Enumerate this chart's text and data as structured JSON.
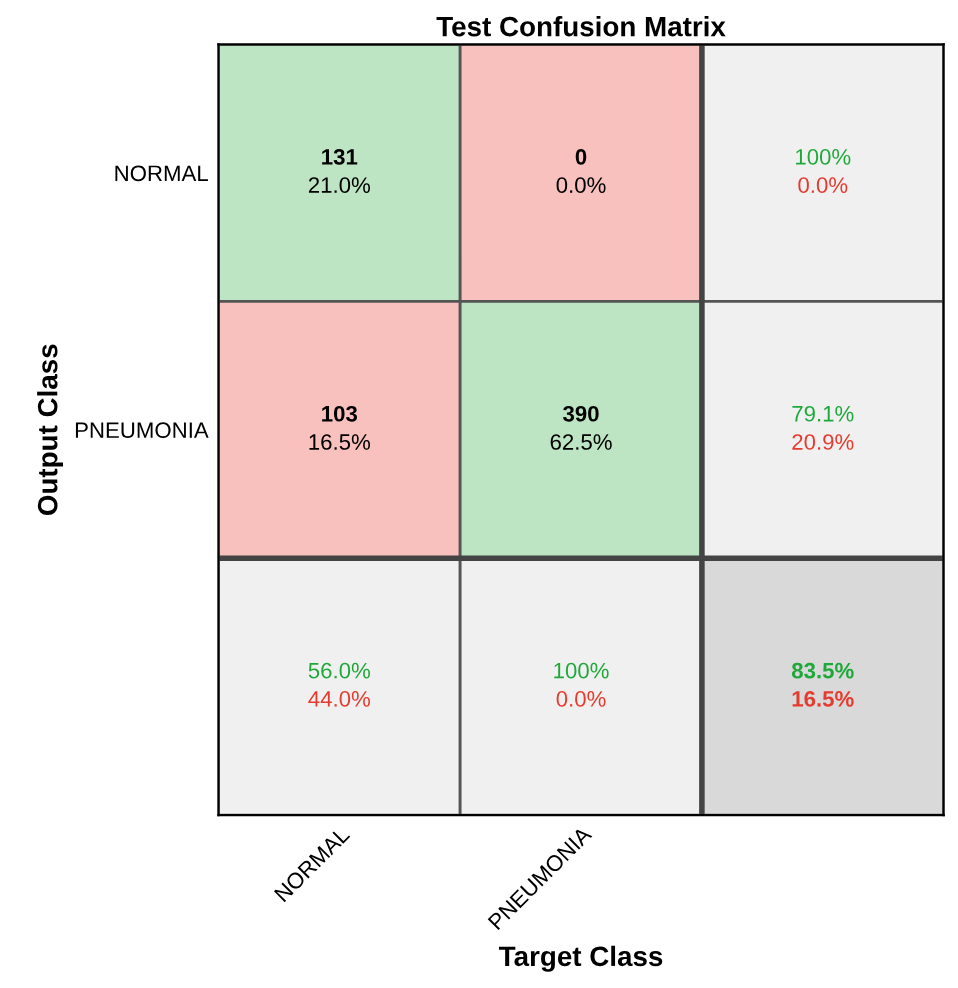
{
  "chart_data": {
    "type": "heatmap",
    "title": "Test Confusion Matrix",
    "xlabel": "Target Class",
    "ylabel": "Output Class",
    "categories": [
      "NORMAL",
      "PNEUMONIA",
      null
    ],
    "y_categories": [
      "NORMAL",
      "PNEUMONIA",
      null
    ],
    "cells": [
      [
        131,
        0,
        100
      ],
      [
        103,
        390,
        79.1
      ],
      [
        56.0,
        100,
        83.5
      ]
    ],
    "cell_labels": [
      [
        "131",
        "0",
        "100%"
      ],
      [
        "103",
        "390",
        "79.1%"
      ],
      [
        "56.0%",
        "100%",
        "83.5%"
      ]
    ],
    "annotations": [
      "21.0%",
      "0.0%",
      "0.0%",
      "16.5%",
      "62.5%",
      "20.9%",
      "44.0%",
      "0.0%",
      "16.5%"
    ],
    "colors": [
      [
        "#bde5c4",
        "#f8c1bd",
        "#f0f0f0"
      ],
      [
        "#f8c1bd",
        "#bde5c4",
        "#f0f0f0"
      ],
      [
        "#f0f0f0",
        "#f0f0f0",
        "#d9d9d9"
      ]
    ]
  }
}
